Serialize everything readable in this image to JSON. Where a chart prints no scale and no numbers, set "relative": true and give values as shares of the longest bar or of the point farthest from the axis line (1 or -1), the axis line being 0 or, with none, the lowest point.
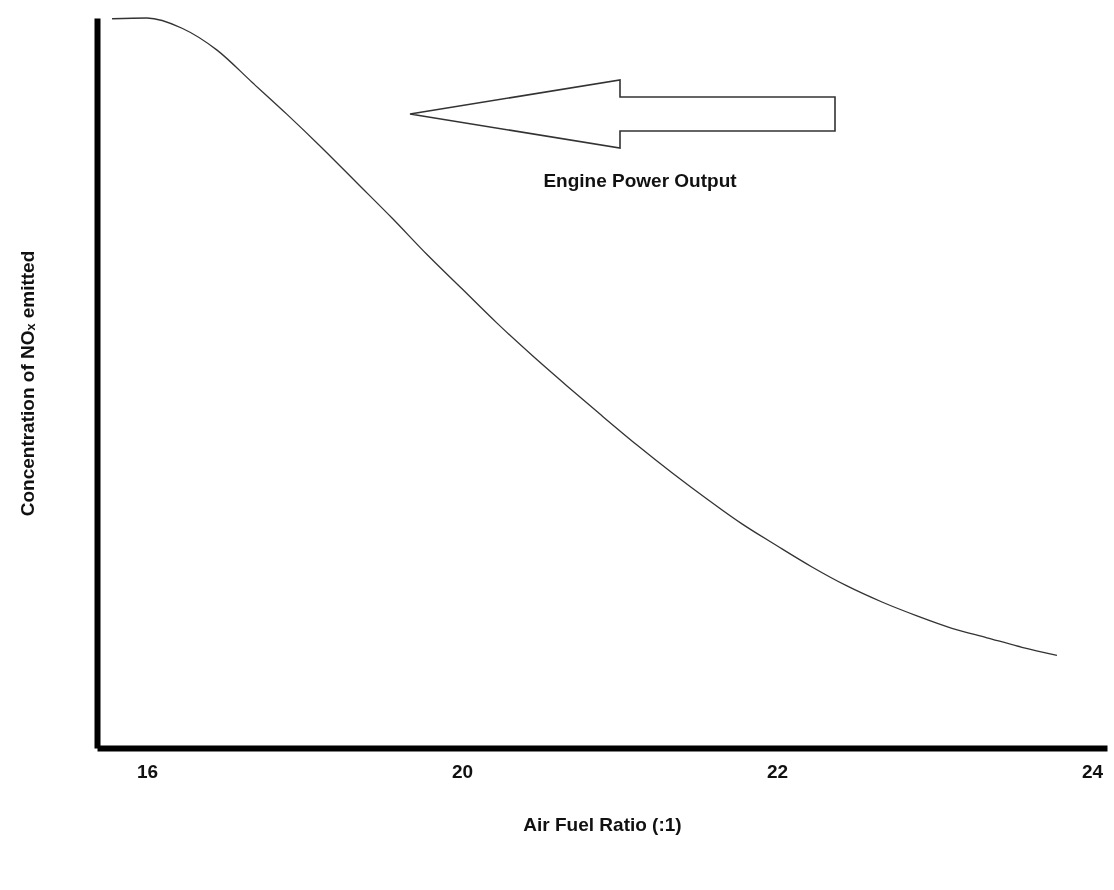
{
  "chart_data": {
    "type": "line",
    "relative": true,
    "xlabel": "Air Fuel Ratio (:1)",
    "ylabel": "Concentration of NOₓ emitted",
    "annotations": [
      "Engine Power Output"
    ],
    "categories": [
      null,
      "16",
      null,
      null,
      null,
      null,
      null,
      null,
      null,
      null,
      "20",
      null,
      null,
      null,
      null,
      null,
      null,
      null,
      null,
      "22",
      null,
      null,
      null,
      null,
      null,
      null,
      null,
      null,
      "24"
    ],
    "series": [
      {
        "color": "#333333",
        "values": [
          0.999,
          1.0,
          0.986,
          0.956,
          0.912,
          0.868,
          0.822,
          0.774,
          0.726,
          0.676,
          0.629,
          0.582,
          0.538,
          0.496,
          0.455,
          0.415,
          0.377,
          0.341,
          0.307,
          0.277,
          0.248,
          0.222,
          0.2,
          0.181,
          0.164,
          0.151,
          0.138,
          0.127,
          null
        ]
      }
    ],
    "grid": false,
    "marker": "none",
    "line_style": "solid"
  }
}
